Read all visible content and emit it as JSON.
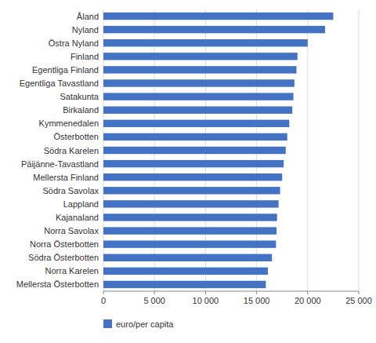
{
  "chart_data": {
    "type": "bar",
    "orientation": "horizontal",
    "categories": [
      "Mellersta Österbotten",
      "Norra Karelen",
      "Södra Österbotten",
      "Norra Österbotten",
      "Norra Savolax",
      "Kajanaland",
      "Lappland",
      "Södra Savolax",
      "Mellersta Finland",
      "Päijänne-Tavastland",
      "Södra Karelen",
      "Österbotten",
      "Kymmenedalen",
      "Birkaland",
      "Satakunta",
      "Egentliga Tavastland",
      "Egentliga Finland",
      "Finland",
      "Östra Nyland",
      "Nyland",
      "Åland"
    ],
    "series": [
      {
        "name": "euro/per capita",
        "color": "#4472C4",
        "values": [
          15900,
          16100,
          16500,
          16900,
          16950,
          17000,
          17150,
          17300,
          17500,
          17650,
          17850,
          18000,
          18200,
          18500,
          18600,
          18700,
          18900,
          19000,
          20000,
          21700,
          22500
        ]
      }
    ],
    "xlim": [
      0,
      25000
    ],
    "xticks": [
      0,
      {
        "value": 5000,
        "label": "5 000"
      },
      {
        "value": 10000,
        "label": "10 000"
      },
      {
        "value": 15000,
        "label": "15 000"
      },
      {
        "value": 20000,
        "label": "20 000"
      },
      {
        "value": 25000,
        "label": "25 000"
      }
    ],
    "grid": true,
    "legend": "bottom-left"
  }
}
